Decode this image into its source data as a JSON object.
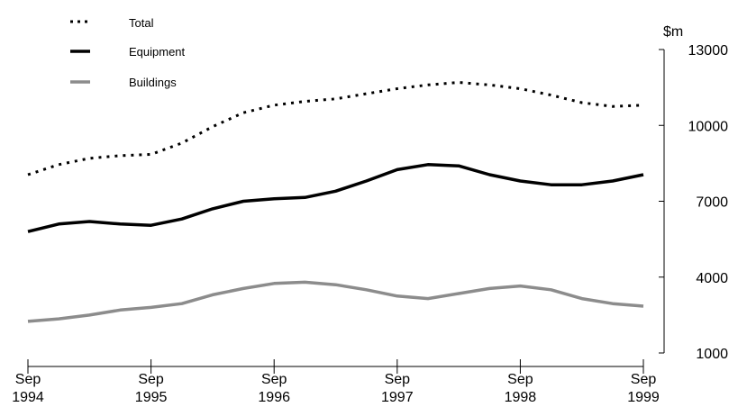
{
  "chart_data": {
    "type": "line",
    "title": "",
    "xlabel": "",
    "ylabel": "$m",
    "ylim": [
      1000,
      13000
    ],
    "y_ticks": [
      1000,
      4000,
      7000,
      10000,
      13000
    ],
    "y_tick_labels": [
      "1000",
      "4000",
      "7000",
      "10000",
      "13000"
    ],
    "y_axis_side": "right",
    "x_tick_labels": [
      {
        "month": "Sep",
        "year": "1994"
      },
      {
        "month": "Sep",
        "year": "1995"
      },
      {
        "month": "Sep",
        "year": "1996"
      },
      {
        "month": "Sep",
        "year": "1997"
      },
      {
        "month": "Sep",
        "year": "1998"
      },
      {
        "month": "Sep",
        "year": "1999"
      }
    ],
    "x": [
      "Sep 1994",
      "Dec 1994",
      "Mar 1995",
      "Jun 1995",
      "Sep 1995",
      "Dec 1995",
      "Mar 1996",
      "Jun 1996",
      "Sep 1996",
      "Dec 1996",
      "Mar 1997",
      "Jun 1997",
      "Sep 1997",
      "Dec 1997",
      "Mar 1998",
      "Jun 1998",
      "Sep 1998",
      "Dec 1998",
      "Mar 1999",
      "Jun 1999",
      "Sep 1999"
    ],
    "series": [
      {
        "name": "Total",
        "style": "dotted",
        "color": "#000000",
        "values": [
          8050,
          8450,
          8700,
          8800,
          8850,
          9300,
          9950,
          10500,
          10800,
          10950,
          11050,
          11250,
          11450,
          11600,
          11700,
          11600,
          11450,
          11200,
          10900,
          10750,
          10800
        ]
      },
      {
        "name": "Equipment",
        "style": "solid",
        "color": "#000000",
        "values": [
          5800,
          6100,
          6200,
          6100,
          6050,
          6300,
          6700,
          7000,
          7100,
          7150,
          7400,
          7800,
          8250,
          8450,
          8400,
          8050,
          7800,
          7650,
          7650,
          7800,
          8050
        ]
      },
      {
        "name": "Buildings",
        "style": "solid",
        "color": "#8c8c8c",
        "values": [
          2250,
          2350,
          2500,
          2700,
          2800,
          2950,
          3300,
          3550,
          3750,
          3800,
          3700,
          3500,
          3250,
          3150,
          3350,
          3550,
          3650,
          3500,
          3150,
          2950,
          2850
        ]
      }
    ],
    "legend_position": "top-left",
    "grid": false
  }
}
